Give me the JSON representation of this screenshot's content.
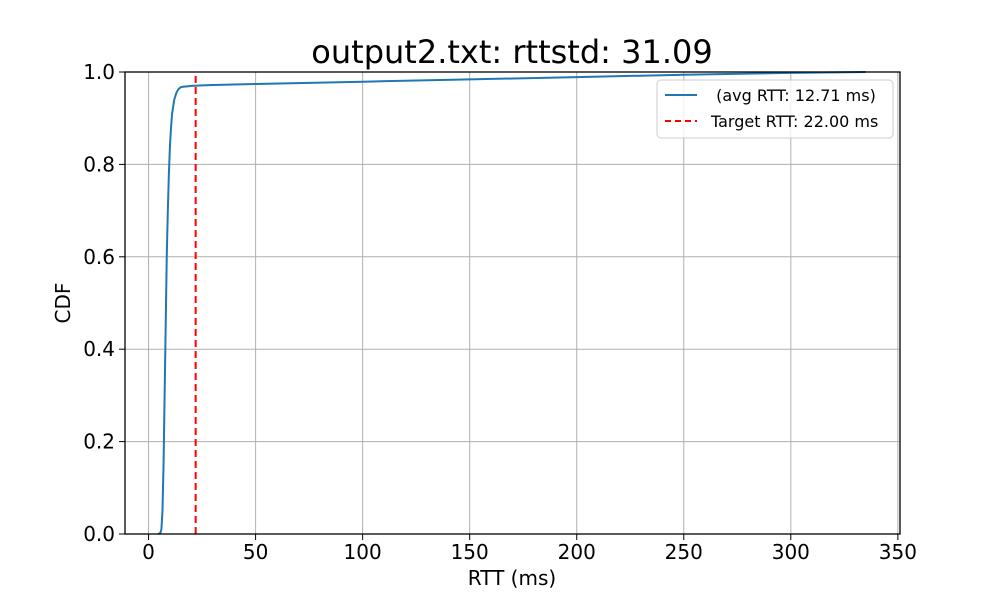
{
  "chart_data": {
    "type": "line",
    "title": "output2.txt: rttstd: 31.09",
    "xlabel": "RTT (ms)",
    "ylabel": "CDF",
    "xlim": [
      -11,
      351
    ],
    "ylim": [
      0.0,
      1.0
    ],
    "xticks": [
      0,
      50,
      100,
      150,
      200,
      250,
      300,
      350
    ],
    "yticks": [
      0.0,
      0.2,
      0.4,
      0.6,
      0.8,
      1.0
    ],
    "xtick_labels": [
      "0",
      "50",
      "100",
      "150",
      "200",
      "250",
      "300",
      "350"
    ],
    "ytick_labels": [
      "0.0",
      "0.2",
      "0.4",
      "0.6",
      "0.8",
      "1.0"
    ],
    "grid": true,
    "legend_position": "top-right",
    "series": [
      {
        "name": " (avg RTT: 12.71 ms)",
        "color": "#1f77b4",
        "style": "solid",
        "x": [
          4.5,
          5.5,
          6.0,
          6.5,
          7.0,
          7.5,
          8.0,
          8.5,
          9.0,
          9.5,
          10.0,
          10.5,
          11.0,
          12.0,
          13.0,
          14.0,
          15.0,
          16.0,
          18.0,
          20.0,
          25.0,
          30.0,
          50.0,
          100.0,
          150.0,
          200.0,
          250.0,
          300.0,
          335.0
        ],
        "y": [
          0.0,
          0.002,
          0.01,
          0.05,
          0.15,
          0.3,
          0.45,
          0.6,
          0.7,
          0.78,
          0.84,
          0.88,
          0.91,
          0.94,
          0.955,
          0.963,
          0.967,
          0.968,
          0.969,
          0.97,
          0.971,
          0.972,
          0.974,
          0.979,
          0.984,
          0.989,
          0.994,
          0.998,
          1.0
        ]
      },
      {
        "name": "Target RTT: 22.00 ms",
        "color": "#ff0000",
        "style": "dashed",
        "x": [
          22.0,
          22.0
        ],
        "y": [
          0.0,
          1.0
        ]
      }
    ]
  }
}
